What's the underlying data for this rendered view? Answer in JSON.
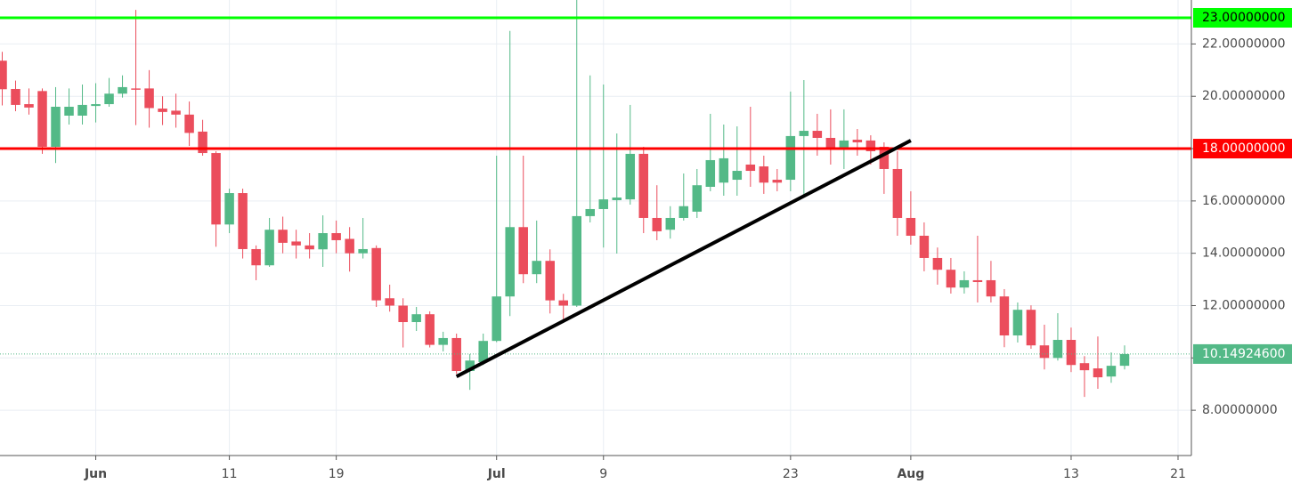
{
  "chart_data": {
    "type": "candlestick",
    "x": [
      "May 25",
      "May 26",
      "May 27",
      "May 28",
      "May 29",
      "May 30",
      "May 31",
      "Jun 1",
      "Jun 2",
      "Jun 3",
      "Jun 4",
      "Jun 5",
      "Jun 6",
      "Jun 7",
      "Jun 8",
      "Jun 9",
      "Jun 10",
      "Jun 11",
      "Jun 12",
      "Jun 13",
      "Jun 14",
      "Jun 15",
      "Jun 16",
      "Jun 17",
      "Jun 18",
      "Jun 19",
      "Jun 20",
      "Jun 21",
      "Jun 22",
      "Jun 23",
      "Jun 24",
      "Jun 25",
      "Jun 26",
      "Jun 27",
      "Jun 28",
      "Jun 29",
      "Jun 30",
      "Jul 1",
      "Jul 2",
      "Jul 3",
      "Jul 4",
      "Jul 5",
      "Jul 6",
      "Jul 7",
      "Jul 8",
      "Jul 9",
      "Jul 10",
      "Jul 11",
      "Jul 12",
      "Jul 13",
      "Jul 14",
      "Jul 15",
      "Jul 16",
      "Jul 17",
      "Jul 18",
      "Jul 19",
      "Jul 20",
      "Jul 21",
      "Jul 22",
      "Jul 23",
      "Jul 24",
      "Jul 25",
      "Jul 26",
      "Jul 27",
      "Jul 28",
      "Jul 29",
      "Jul 30",
      "Jul 31",
      "Aug 1",
      "Aug 2",
      "Aug 3",
      "Aug 4",
      "Aug 5",
      "Aug 6",
      "Aug 7",
      "Aug 8",
      "Aug 9",
      "Aug 10",
      "Aug 11",
      "Aug 12",
      "Aug 13",
      "Aug 14",
      "Aug 15",
      "Aug 16",
      "Aug 17"
    ],
    "open": [
      21.36,
      20.28,
      19.7,
      20.2,
      18.07,
      19.26,
      19.26,
      19.63,
      19.7,
      20.1,
      20.3,
      20.3,
      19.53,
      19.45,
      19.3,
      18.65,
      17.83,
      15.1,
      16.3,
      14.16,
      13.54,
      14.9,
      14.45,
      14.3,
      14.15,
      14.77,
      14.55,
      14.0,
      14.2,
      12.28,
      12.0,
      11.37,
      11.67,
      10.5,
      10.76,
      9.5,
      9.84,
      10.65,
      12.35,
      15.0,
      13.2,
      13.71,
      12.2,
      12.0,
      15.42,
      15.69,
      16.03,
      16.06,
      17.8,
      15.35,
      14.9,
      15.35,
      15.59,
      16.54,
      16.7,
      16.81,
      17.39,
      17.32,
      16.81,
      16.81,
      18.48,
      18.68,
      18.41,
      18.0,
      18.34,
      18.31,
      18.07,
      17.22,
      15.35,
      14.67,
      13.82,
      13.37,
      12.69,
      12.97,
      12.97,
      12.35,
      10.86,
      11.84,
      10.48,
      10.0,
      10.69,
      9.8,
      9.6,
      9.29,
      9.7
    ],
    "high": [
      21.7,
      20.6,
      20.3,
      20.3,
      20.35,
      20.3,
      20.45,
      20.5,
      20.7,
      20.8,
      23.3,
      21.0,
      20.0,
      20.1,
      19.8,
      19.1,
      17.9,
      16.47,
      16.47,
      14.3,
      15.35,
      15.4,
      14.9,
      14.77,
      15.45,
      15.25,
      15.0,
      15.35,
      14.3,
      12.8,
      12.28,
      11.95,
      11.78,
      11.0,
      10.93,
      10.15,
      10.93,
      17.73,
      22.5,
      17.73,
      15.25,
      14.15,
      12.45,
      23.68,
      20.8,
      20.45,
      18.58,
      19.67,
      18.07,
      16.6,
      15.8,
      17.05,
      17.22,
      19.33,
      18.92,
      18.85,
      19.6,
      17.73,
      17.22,
      20.18,
      20.62,
      19.33,
      19.5,
      19.5,
      18.75,
      18.51,
      18.24,
      17.9,
      16.37,
      15.18,
      14.22,
      13.82,
      13.31,
      14.67,
      13.71,
      12.63,
      12.12,
      12.01,
      11.27,
      11.71,
      11.16,
      10.07,
      10.82,
      10.21,
      10.48
    ],
    "low": [
      19.65,
      19.43,
      19.3,
      17.8,
      17.45,
      18.92,
      18.92,
      19.0,
      19.6,
      19.95,
      18.9,
      18.8,
      18.9,
      18.8,
      18.1,
      17.73,
      14.25,
      14.77,
      13.8,
      12.97,
      13.48,
      14.0,
      13.8,
      13.8,
      13.48,
      14.0,
      13.3,
      13.8,
      11.95,
      11.77,
      10.4,
      11.03,
      10.4,
      10.25,
      9.39,
      8.78,
      9.73,
      10.6,
      11.6,
      12.86,
      12.86,
      11.7,
      11.44,
      11.95,
      15.18,
      14.22,
      13.99,
      15.86,
      14.77,
      14.5,
      14.56,
      15.25,
      15.35,
      16.37,
      16.2,
      16.2,
      16.54,
      16.27,
      16.37,
      16.37,
      16.2,
      17.73,
      17.39,
      17.22,
      17.73,
      17.39,
      16.27,
      14.67,
      14.33,
      13.31,
      12.8,
      12.46,
      12.46,
      12.12,
      12.12,
      10.41,
      10.59,
      10.35,
      9.56,
      9.9,
      9.46,
      8.51,
      8.82,
      9.05,
      9.56
    ],
    "close": [
      20.27,
      19.67,
      19.57,
      18.07,
      19.6,
      19.6,
      19.67,
      19.7,
      20.1,
      20.35,
      20.25,
      19.55,
      19.4,
      19.3,
      18.6,
      17.83,
      15.1,
      16.3,
      14.16,
      13.54,
      14.9,
      14.4,
      14.3,
      14.15,
      14.77,
      14.5,
      14.0,
      14.16,
      12.2,
      12.0,
      11.37,
      11.67,
      10.5,
      10.76,
      9.5,
      9.9,
      10.65,
      12.35,
      15.0,
      13.2,
      13.71,
      12.2,
      12.0,
      15.42,
      15.69,
      16.06,
      16.13,
      17.8,
      15.35,
      14.84,
      15.35,
      15.8,
      16.6,
      17.56,
      17.63,
      17.15,
      17.15,
      16.7,
      16.7,
      18.48,
      18.68,
      18.41,
      18.0,
      18.31,
      18.24,
      17.9,
      17.22,
      15.35,
      14.67,
      13.82,
      13.37,
      12.69,
      12.97,
      12.9,
      12.35,
      10.86,
      11.84,
      10.48,
      10.0,
      10.69,
      9.73,
      9.53,
      9.26,
      9.7,
      10.149246
    ],
    "up_color": "#53b987",
    "down_color": "#eb4d5c",
    "xlim": [
      "May 25",
      "Aug 22"
    ],
    "xticks": [
      {
        "value": "Jun 1",
        "label": "Jun"
      },
      {
        "value": "Jun 11",
        "label": "11"
      },
      {
        "value": "Jun 19",
        "label": "19"
      },
      {
        "value": "Jul 1",
        "label": "Jul"
      },
      {
        "value": "Jul 9",
        "label": "9"
      },
      {
        "value": "Jul 23",
        "label": "23"
      },
      {
        "value": "Aug 1",
        "label": "Aug"
      },
      {
        "value": "Aug 13",
        "label": "13"
      },
      {
        "value": "Aug 21",
        "label": "21"
      }
    ],
    "ylim": [
      6.27,
      23.68
    ],
    "yticks": [
      {
        "value": 8,
        "label": "8.00000000"
      },
      {
        "value": 10,
        "label": "10.00000000"
      },
      {
        "value": 12,
        "label": "12.00000000"
      },
      {
        "value": 14,
        "label": "14.00000000"
      },
      {
        "value": 16,
        "label": "16.00000000"
      },
      {
        "value": 18,
        "label": "18.00000000"
      },
      {
        "value": 20,
        "label": "20.00000000"
      },
      {
        "value": 22,
        "label": "22.00000000"
      }
    ],
    "grid": true,
    "levels": [
      {
        "value": 23,
        "label": "23.00000000",
        "color": "#00ff00",
        "text_color": "#000000"
      },
      {
        "value": 18,
        "label": "18.00000000",
        "color": "#ff0000",
        "text_color": "#ffffff"
      }
    ],
    "last_price": {
      "value": 10.149246,
      "label": "10.14924600",
      "color": "#53b987",
      "text_color": "#ffffff"
    },
    "trendline": {
      "x": [
        "Jun 28",
        "Aug 1"
      ],
      "y": [
        9.29,
        18.31
      ],
      "color": "#000000"
    }
  }
}
